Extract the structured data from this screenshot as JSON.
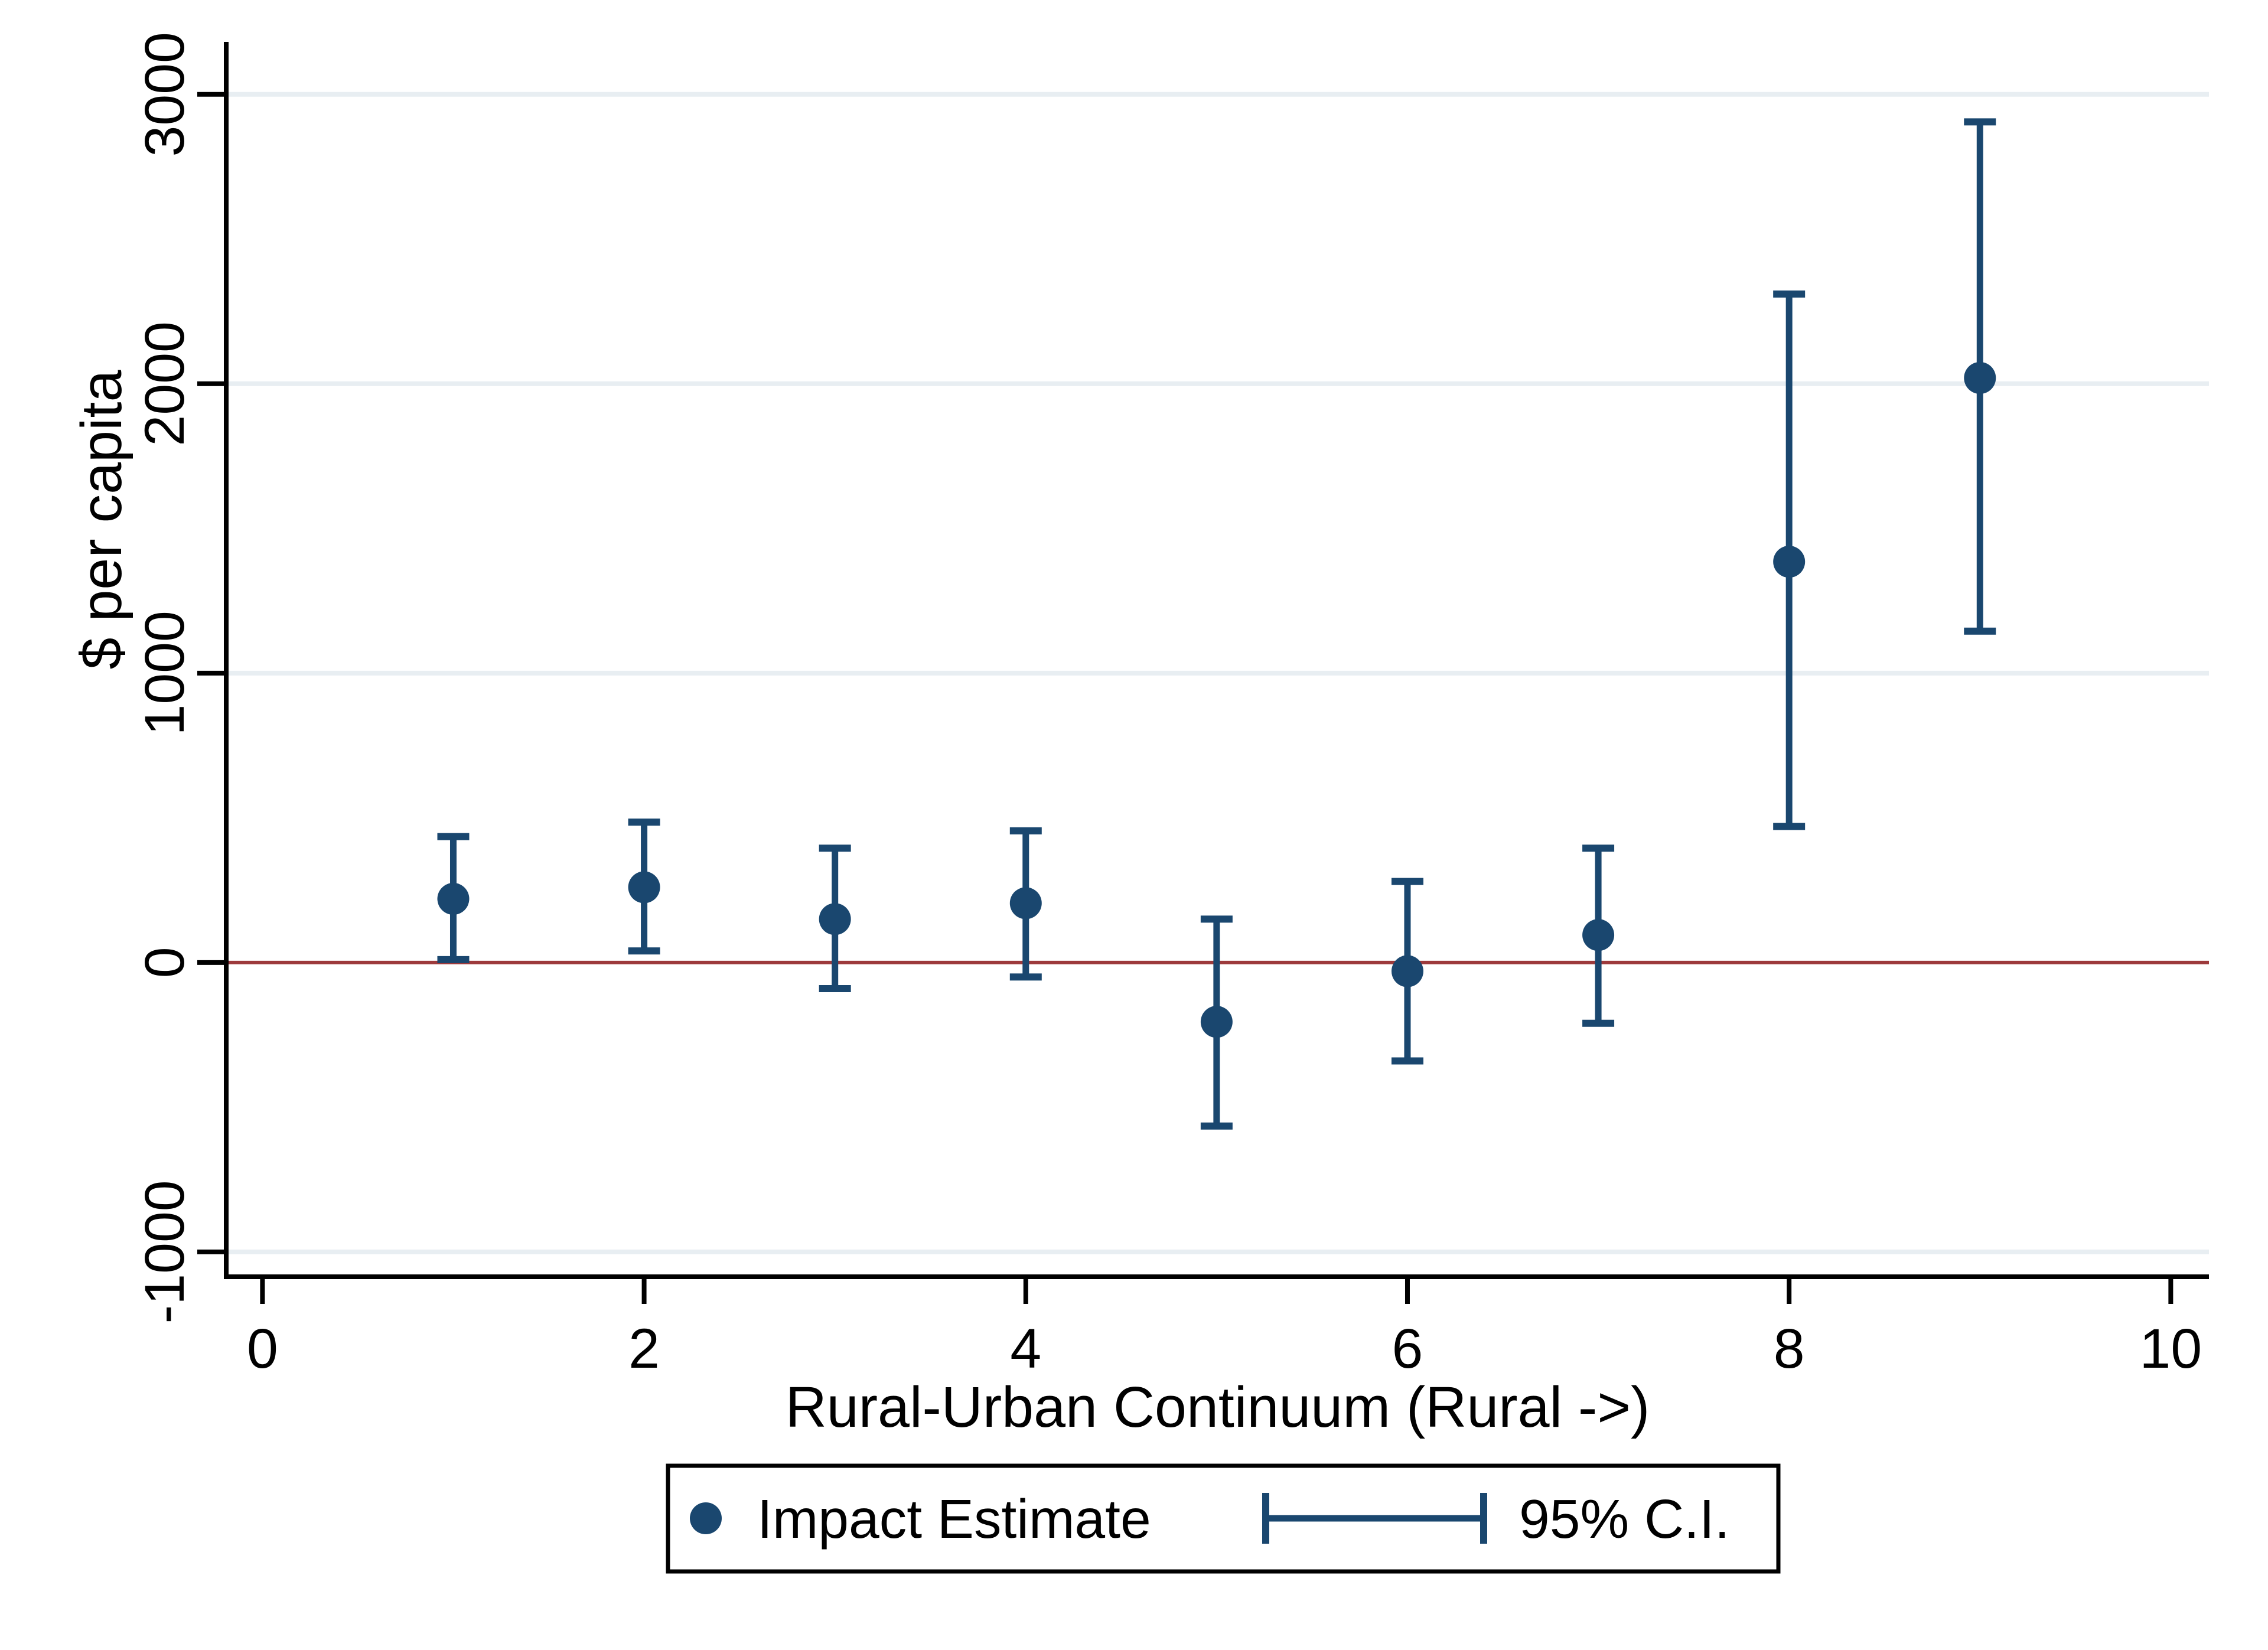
{
  "chart_data": {
    "type": "scatter",
    "title": "",
    "xlabel": "Rural-Urban Continuum (Rural ->)",
    "ylabel": "$ per capita",
    "x": [
      1,
      2,
      3,
      4,
      5,
      6,
      7,
      8,
      9
    ],
    "series": [
      {
        "name": "Impact Estimate",
        "values": [
          220,
          260,
          150,
          205,
          -205,
          -30,
          95,
          1385,
          2020
        ]
      },
      {
        "name": "95% C.I.",
        "lower": [
          10,
          40,
          -90,
          -50,
          -565,
          -340,
          -210,
          470,
          1145
        ],
        "upper": [
          435,
          485,
          395,
          455,
          150,
          280,
          395,
          2310,
          2905
        ]
      }
    ],
    "x_ticks": [
      0,
      2,
      4,
      6,
      8,
      10
    ],
    "x_tick_labels": [
      "0",
      "2",
      "4",
      "6",
      "8",
      "10"
    ],
    "y_ticks": [
      -1000,
      0,
      1000,
      2000,
      3000
    ],
    "y_tick_labels": [
      "-1000",
      "0",
      "1000",
      "2000",
      "3000"
    ],
    "xlim": [
      -0.19,
      10.2
    ],
    "ylim": [
      -1086,
      3173
    ],
    "zero_line_value": 0,
    "grid": "horizontal",
    "legend_position": "bottom-center",
    "legend": [
      "Impact Estimate",
      "95% C.I."
    ]
  },
  "colors": {
    "navy": "#1a476f",
    "zero_line": "#9d3a3c",
    "grid": "#e8eef2",
    "axis": "#000000",
    "background": "#ffffff"
  }
}
